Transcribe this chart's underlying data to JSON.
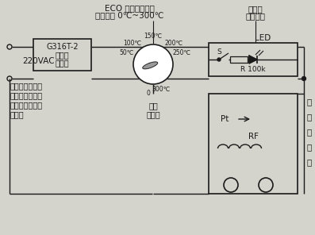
{
  "bg_color": "#d4d4cc",
  "line_color": "#1a1a1a",
  "eco_label": "ECO 型温度控制器",
  "eco_range": "控温范围 0℃~300℃",
  "heater_switch_1": "电暖气",
  "heater_switch_2": "控制开关",
  "timer_line1": "G316T-2",
  "timer_line2": "型微时",
  "timer_line3": "控开关",
  "voltage_label": "220VAC",
  "sensor_line1": "温度",
  "sensor_line2": "传感器",
  "left_text_line1": "由人工分段时间",
  "left_text_line2": "设定以控制储热",
  "left_text_line3": "电暖器的通电加",
  "left_text_line4": "热时间",
  "storage_line1": "储",
  "storage_line2": "热",
  "storage_line3": "电",
  "storage_line4": "暖",
  "storage_line5": "气",
  "led_label": "LED",
  "r_label": "R 100k",
  "switch_label": "S",
  "pt_label": "Pt",
  "rf_label": "RF",
  "temp_150": "150℃",
  "temp_100": "100℃",
  "temp_200": "200℃",
  "temp_50": "50℃",
  "temp_250": "250℃",
  "temp_0": "0",
  "temp_300": "300℃",
  "figw": 3.97,
  "figh": 2.96,
  "dpi": 100
}
